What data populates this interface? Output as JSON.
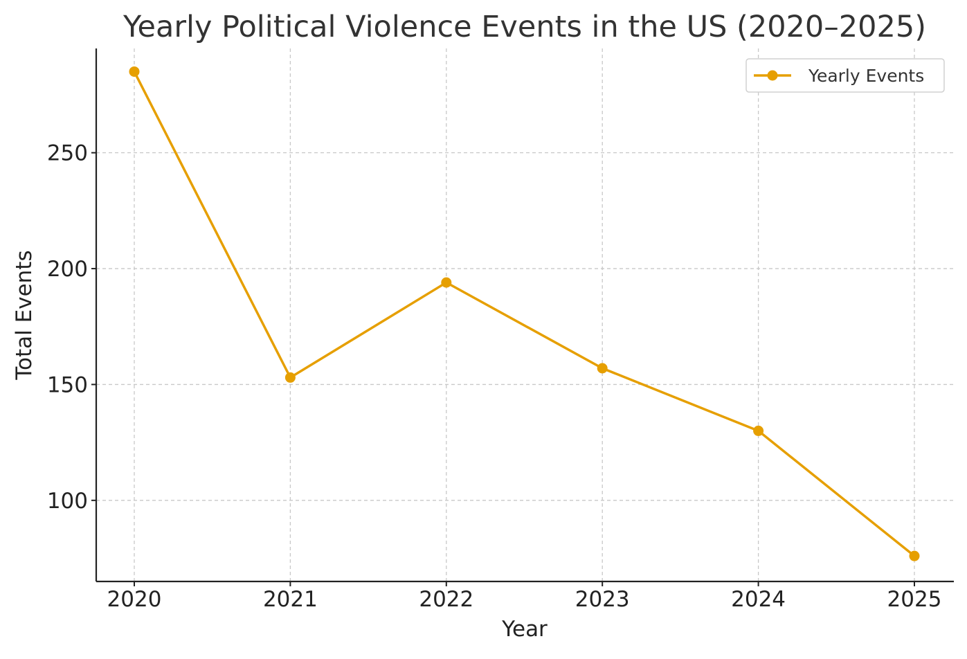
{
  "chart_data": {
    "type": "line",
    "title": "Yearly Political Violence Events in the US (2020–2025)",
    "xlabel": "Year",
    "ylabel": "Total Events",
    "categories": [
      "2020",
      "2021",
      "2022",
      "2023",
      "2024",
      "2025"
    ],
    "series": [
      {
        "name": "Yearly Events",
        "color": "#e69f00",
        "values": [
          285,
          153,
          194,
          157,
          130,
          76
        ]
      }
    ],
    "yticks": [
      100,
      150,
      200,
      250
    ],
    "ylim": [
      65,
      295
    ],
    "grid": true,
    "legend_position": "top-right",
    "marker": "circle"
  }
}
